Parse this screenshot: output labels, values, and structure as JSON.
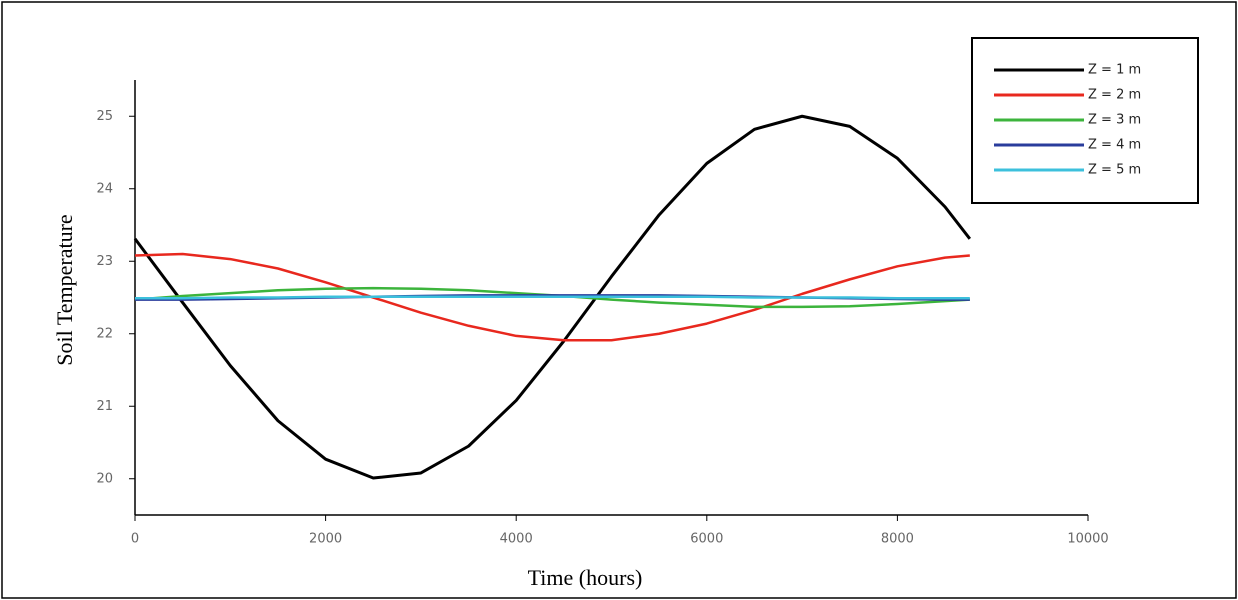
{
  "chart_data": {
    "type": "line",
    "xlabel": "Time (hours)",
    "ylabel": "Soil Temperature",
    "x": [
      0,
      500,
      1000,
      1500,
      2000,
      2500,
      3000,
      3500,
      4000,
      4500,
      5000,
      5500,
      6000,
      6500,
      7000,
      7500,
      8000,
      8500,
      8760
    ],
    "series": [
      {
        "name": "Z = 1 m",
        "color": "#000000",
        "values": [
          23.31,
          22.43,
          21.56,
          20.8,
          20.27,
          20.01,
          20.08,
          20.45,
          21.08,
          21.9,
          22.79,
          23.64,
          24.35,
          24.82,
          25.0,
          24.86,
          24.42,
          23.75,
          23.31
        ]
      },
      {
        "name": "Z = 2 m",
        "color": "#e8281e",
        "values": [
          23.08,
          23.1,
          23.03,
          22.9,
          22.71,
          22.5,
          22.29,
          22.11,
          21.97,
          21.91,
          21.91,
          22.0,
          22.14,
          22.33,
          22.55,
          22.75,
          22.93,
          23.05,
          23.08
        ]
      },
      {
        "name": "Z = 3 m",
        "color": "#3cb43c",
        "values": [
          22.47,
          22.52,
          22.56,
          22.6,
          22.62,
          22.63,
          22.62,
          22.6,
          22.56,
          22.52,
          22.47,
          22.43,
          22.4,
          22.37,
          22.37,
          22.38,
          22.41,
          22.45,
          22.47
        ]
      },
      {
        "name": "Z = 4 m",
        "color": "#2a3c9c",
        "values": [
          22.47,
          22.47,
          22.48,
          22.49,
          22.5,
          22.51,
          22.52,
          22.53,
          22.53,
          22.53,
          22.53,
          22.53,
          22.52,
          22.51,
          22.5,
          22.49,
          22.48,
          22.47,
          22.47
        ]
      },
      {
        "name": "Z = 5 m",
        "color": "#3cc0dc",
        "values": [
          22.49,
          22.49,
          22.5,
          22.5,
          22.51,
          22.51,
          22.51,
          22.51,
          22.51,
          22.51,
          22.51,
          22.51,
          22.51,
          22.5,
          22.5,
          22.5,
          22.49,
          22.49,
          22.49
        ]
      }
    ],
    "xlim": [
      0,
      10000
    ],
    "xticks": [
      0,
      2000,
      4000,
      6000,
      8000,
      10000
    ],
    "ylim": [
      19.5,
      25.5
    ],
    "yticks": [
      20,
      21,
      22,
      23,
      24,
      25
    ],
    "legend": "upper-right",
    "grid": false
  }
}
